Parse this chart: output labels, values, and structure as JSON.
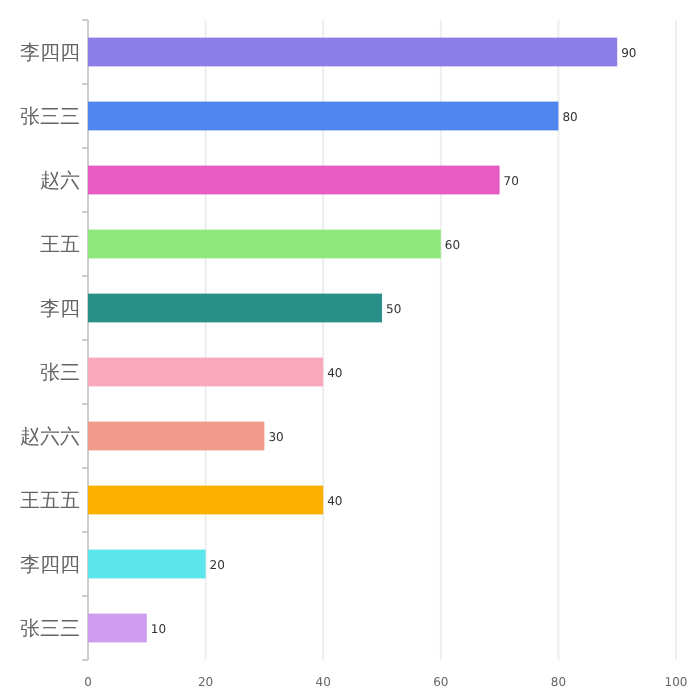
{
  "chart_data": {
    "type": "bar",
    "orientation": "horizontal",
    "categories": [
      "李四四",
      "张三三",
      "赵六",
      "王五",
      "李四",
      "张三",
      "赵六六",
      "王五五",
      "李四四",
      "张三三"
    ],
    "values": [
      90,
      80,
      70,
      60,
      50,
      40,
      30,
      40,
      20,
      10
    ],
    "colors": [
      "#8b7ee8",
      "#4f86f0",
      "#e65cc4",
      "#90e87a",
      "#2a8f88",
      "#f9a8bd",
      "#f29b8c",
      "#fbb000",
      "#5ae6ec",
      "#cf9df0"
    ],
    "xlim": [
      0,
      100
    ],
    "xticks": [
      0,
      20,
      40,
      60,
      80,
      100
    ],
    "grid": "x",
    "data_labels": true
  }
}
